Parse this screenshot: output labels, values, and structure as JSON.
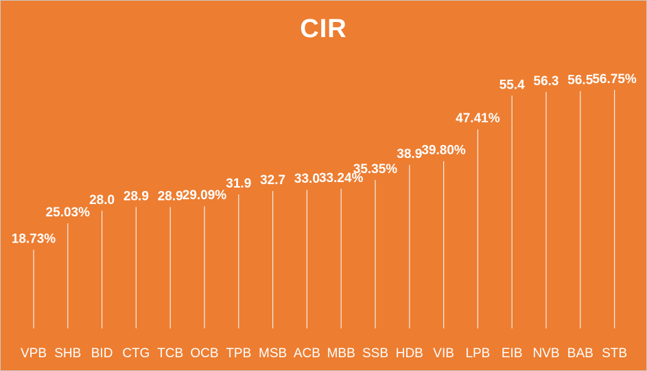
{
  "chart_data": {
    "type": "bar",
    "title": "CIR",
    "categories": [
      "VPB",
      "SHB",
      "BID",
      "CTG",
      "TCB",
      "OCB",
      "TPB",
      "MSB",
      "ACB",
      "MBB",
      "SSB",
      "HDB",
      "VIB",
      "LPB",
      "EIB",
      "NVB",
      "BAB",
      "STB"
    ],
    "values": [
      18.73,
      25.03,
      28.0,
      28.9,
      28.9,
      29.09,
      31.9,
      32.7,
      33.0,
      33.24,
      35.35,
      38.9,
      39.8,
      47.41,
      55.4,
      56.3,
      56.5,
      56.75
    ],
    "data_labels": [
      "18.73%",
      "25.03%",
      "28.0",
      "28.9",
      "28.9",
      "29.09%",
      "31.9",
      "32.7",
      "33.0",
      "33.24%",
      "35.35%",
      "38.9",
      "39.80%",
      "47.41%",
      "55.4",
      "56.3",
      "56.5",
      "56.75%"
    ],
    "xlabel": "",
    "ylabel": "",
    "ylim": [
      0,
      60
    ],
    "grid": false,
    "legend": "none",
    "colors": {
      "background": "#ed7d31",
      "text": "#ffffff",
      "stem": "#f6f0ea"
    }
  }
}
